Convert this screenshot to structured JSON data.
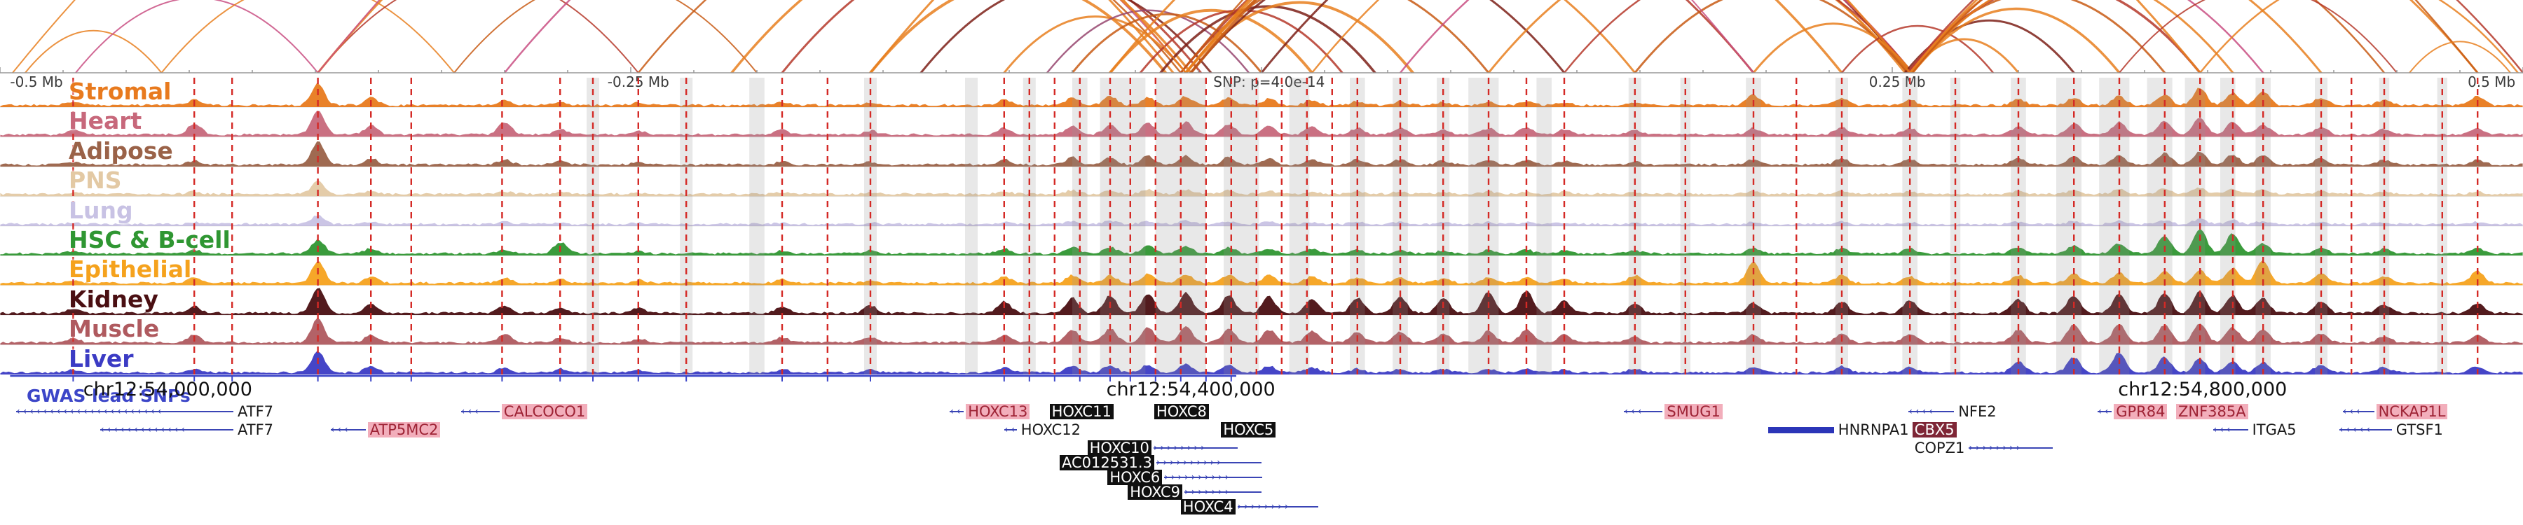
{
  "chart_data": {
    "type": "area",
    "ruler_labels": [
      {
        "text": "-0.5 Mb",
        "x": 0.004,
        "anchor": "start"
      },
      {
        "text": "-0.25 Mb",
        "x": 0.253,
        "anchor": "middle"
      },
      {
        "text": "SNP: p=4.0e-14",
        "x": 0.503,
        "anchor": "middle"
      },
      {
        "text": "0.25 Mb",
        "x": 0.752,
        "anchor": "middle"
      },
      {
        "text": "0.5 Mb",
        "x": 0.997,
        "anchor": "end"
      }
    ],
    "coordinates": [
      {
        "text": "chr12:54,000,000",
        "x": 0.033,
        "anchor": "start"
      },
      {
        "text": "chr12:54,400,000",
        "x": 0.472,
        "anchor": "middle"
      },
      {
        "text": "chr12:54,800,000",
        "x": 0.873,
        "anchor": "middle"
      }
    ],
    "gwas": {
      "label": "GWAS lead SNPs",
      "color": "#3C46C8",
      "line_start": 0.004,
      "line_end": 0.49
    },
    "tracks": [
      {
        "name": "Stromal",
        "color": "#E87A1E"
      },
      {
        "name": "Heart",
        "color": "#C7687B"
      },
      {
        "name": "Adipose",
        "color": "#9A6248"
      },
      {
        "name": "PNS",
        "color": "#E3C9A4"
      },
      {
        "name": "Lung",
        "color": "#C8C2E4"
      },
      {
        "name": "HSC & B-cell",
        "color": "#2F9632"
      },
      {
        "name": "Epithelial",
        "color": "#F5A21D"
      },
      {
        "name": "Kidney",
        "color": "#4A0F12"
      },
      {
        "name": "Muscle",
        "color": "#AF5A5F"
      },
      {
        "name": "Liver",
        "color": "#3B3BC4"
      }
    ],
    "peaks": [
      [
        0.029,
        0.15,
        0.2,
        0.1,
        0.05,
        0.05,
        0.1,
        0.1,
        0.15,
        0.15,
        0.1
      ],
      [
        0.077,
        0.2,
        0.45,
        0.15,
        0.1,
        0.08,
        0.15,
        0.2,
        0.25,
        0.3,
        0.15
      ],
      [
        0.126,
        0.85,
        0.95,
        0.9,
        0.5,
        0.35,
        0.55,
        0.85,
        1.0,
        0.95,
        0.85
      ],
      [
        0.147,
        0.3,
        0.35,
        0.25,
        0.12,
        0.1,
        0.2,
        0.25,
        0.35,
        0.3,
        0.25
      ],
      [
        0.2,
        0.2,
        0.5,
        0.2,
        0.1,
        0.08,
        0.15,
        0.2,
        0.3,
        0.35,
        0.2
      ],
      [
        0.222,
        0.15,
        0.2,
        0.15,
        0.08,
        0.06,
        0.45,
        0.15,
        0.2,
        0.2,
        0.15
      ],
      [
        0.253,
        0.1,
        0.15,
        0.1,
        0.05,
        0.05,
        0.1,
        0.12,
        0.2,
        0.15,
        0.1
      ],
      [
        0.31,
        0.12,
        0.18,
        0.12,
        0.06,
        0.05,
        0.12,
        0.15,
        0.25,
        0.2,
        0.12
      ],
      [
        0.345,
        0.1,
        0.15,
        0.1,
        0.05,
        0.05,
        0.15,
        0.1,
        0.3,
        0.2,
        0.1
      ],
      [
        0.398,
        0.2,
        0.25,
        0.2,
        0.1,
        0.08,
        0.2,
        0.25,
        0.45,
        0.3,
        0.2
      ],
      [
        0.425,
        0.3,
        0.35,
        0.3,
        0.15,
        0.1,
        0.25,
        0.3,
        0.6,
        0.5,
        0.25
      ],
      [
        0.44,
        0.35,
        0.4,
        0.3,
        0.15,
        0.12,
        0.25,
        0.3,
        0.7,
        0.55,
        0.3
      ],
      [
        0.455,
        0.3,
        0.45,
        0.35,
        0.18,
        0.12,
        0.3,
        0.35,
        0.75,
        0.6,
        0.3
      ],
      [
        0.47,
        0.35,
        0.5,
        0.35,
        0.18,
        0.15,
        0.3,
        0.35,
        0.8,
        0.65,
        0.35
      ],
      [
        0.487,
        0.3,
        0.4,
        0.3,
        0.15,
        0.12,
        0.25,
        0.3,
        0.7,
        0.55,
        0.3
      ],
      [
        0.503,
        0.25,
        0.35,
        0.25,
        0.12,
        0.1,
        0.2,
        0.3,
        0.65,
        0.5,
        0.25
      ],
      [
        0.52,
        0.2,
        0.3,
        0.2,
        0.1,
        0.08,
        0.2,
        0.25,
        0.55,
        0.45,
        0.2
      ],
      [
        0.538,
        0.15,
        0.25,
        0.2,
        0.1,
        0.08,
        0.15,
        0.2,
        0.6,
        0.4,
        0.15
      ],
      [
        0.555,
        0.15,
        0.25,
        0.2,
        0.1,
        0.08,
        0.15,
        0.2,
        0.65,
        0.4,
        0.15
      ],
      [
        0.572,
        0.12,
        0.2,
        0.15,
        0.08,
        0.06,
        0.12,
        0.18,
        0.6,
        0.35,
        0.12
      ],
      [
        0.59,
        0.15,
        0.25,
        0.2,
        0.1,
        0.08,
        0.15,
        0.2,
        0.85,
        0.45,
        0.15
      ],
      [
        0.605,
        0.15,
        0.3,
        0.2,
        0.1,
        0.08,
        0.15,
        0.2,
        0.9,
        0.5,
        0.15
      ],
      [
        0.62,
        0.1,
        0.2,
        0.15,
        0.08,
        0.06,
        0.12,
        0.15,
        0.5,
        0.3,
        0.1
      ],
      [
        0.648,
        0.12,
        0.18,
        0.12,
        0.06,
        0.05,
        0.12,
        0.3,
        0.35,
        0.25,
        0.15
      ],
      [
        0.695,
        0.4,
        0.25,
        0.2,
        0.1,
        0.08,
        0.2,
        0.8,
        0.4,
        0.3,
        0.2
      ],
      [
        0.73,
        0.25,
        0.3,
        0.25,
        0.12,
        0.1,
        0.2,
        0.3,
        0.45,
        0.35,
        0.25
      ],
      [
        0.757,
        0.2,
        0.25,
        0.2,
        0.1,
        0.08,
        0.2,
        0.25,
        0.5,
        0.35,
        0.2
      ],
      [
        0.8,
        0.25,
        0.3,
        0.25,
        0.12,
        0.1,
        0.25,
        0.3,
        0.55,
        0.5,
        0.45
      ],
      [
        0.822,
        0.3,
        0.45,
        0.35,
        0.15,
        0.12,
        0.3,
        0.35,
        0.7,
        0.7,
        0.6
      ],
      [
        0.84,
        0.35,
        0.5,
        0.4,
        0.18,
        0.15,
        0.4,
        0.4,
        0.75,
        0.75,
        0.8
      ],
      [
        0.858,
        0.4,
        0.55,
        0.45,
        0.2,
        0.15,
        0.7,
        0.45,
        0.8,
        0.7,
        0.6
      ],
      [
        0.872,
        0.7,
        0.65,
        0.5,
        0.25,
        0.2,
        1.0,
        0.5,
        0.85,
        0.75,
        0.55
      ],
      [
        0.885,
        0.5,
        0.5,
        0.4,
        0.2,
        0.15,
        0.8,
        0.6,
        0.7,
        0.6,
        0.45
      ],
      [
        0.897,
        0.55,
        0.4,
        0.35,
        0.18,
        0.12,
        0.4,
        0.9,
        0.6,
        0.5,
        0.4
      ],
      [
        0.92,
        0.3,
        0.3,
        0.25,
        0.12,
        0.1,
        0.25,
        0.4,
        0.45,
        0.35,
        0.3
      ],
      [
        0.945,
        0.2,
        0.2,
        0.18,
        0.1,
        0.08,
        0.18,
        0.25,
        0.35,
        0.25,
        0.2
      ],
      [
        0.982,
        0.35,
        0.25,
        0.2,
        0.1,
        0.08,
        0.2,
        0.5,
        0.4,
        0.3,
        0.25
      ]
    ],
    "snp_positions": [
      0.029,
      0.077,
      0.092,
      0.126,
      0.147,
      0.163,
      0.199,
      0.222,
      0.235,
      0.253,
      0.272,
      0.31,
      0.328,
      0.345,
      0.398,
      0.408,
      0.418,
      0.428,
      0.44,
      0.448,
      0.458,
      0.468,
      0.478,
      0.488,
      0.498,
      0.508,
      0.518,
      0.528,
      0.538,
      0.555,
      0.572,
      0.59,
      0.605,
      0.62,
      0.648,
      0.668,
      0.695,
      0.712,
      0.73,
      0.757,
      0.775,
      0.8,
      0.822,
      0.84,
      0.858,
      0.872,
      0.885,
      0.897,
      0.92,
      0.932,
      0.945,
      0.968,
      0.982
    ],
    "highlight_bands": [
      [
        0.235,
        0.005
      ],
      [
        0.272,
        0.005
      ],
      [
        0.3,
        0.006
      ],
      [
        0.345,
        0.005
      ],
      [
        0.385,
        0.005
      ],
      [
        0.408,
        0.005
      ],
      [
        0.428,
        0.006
      ],
      [
        0.445,
        0.018
      ],
      [
        0.468,
        0.02
      ],
      [
        0.492,
        0.014
      ],
      [
        0.515,
        0.008
      ],
      [
        0.538,
        0.006
      ],
      [
        0.555,
        0.006
      ],
      [
        0.572,
        0.005
      ],
      [
        0.588,
        0.012
      ],
      [
        0.612,
        0.006
      ],
      [
        0.648,
        0.005
      ],
      [
        0.668,
        0.004
      ],
      [
        0.695,
        0.006
      ],
      [
        0.73,
        0.005
      ],
      [
        0.757,
        0.006
      ],
      [
        0.775,
        0.004
      ],
      [
        0.8,
        0.006
      ],
      [
        0.82,
        0.01
      ],
      [
        0.838,
        0.012
      ],
      [
        0.856,
        0.01
      ],
      [
        0.87,
        0.008
      ],
      [
        0.883,
        0.006
      ],
      [
        0.897,
        0.006
      ],
      [
        0.92,
        0.005
      ],
      [
        0.945,
        0.004
      ],
      [
        0.968,
        0.004
      ]
    ],
    "arcs": {
      "palette": [
        "#E87F1F",
        "#C85A14",
        "#B5382A",
        "#7C2017",
        "#C94F82",
        "#97456E"
      ],
      "list": [
        [
          0.01,
          0.064,
          0,
          2
        ],
        [
          0.03,
          0.126,
          4,
          2
        ],
        [
          0.064,
          0.18,
          0,
          2
        ],
        [
          0.126,
          0.253,
          2,
          2
        ],
        [
          0.18,
          0.3,
          1,
          2
        ],
        [
          0.126,
          0.465,
          0,
          3
        ],
        [
          0.2,
          0.47,
          4,
          2.5
        ],
        [
          0.253,
          0.468,
          1,
          2.5
        ],
        [
          0.29,
          0.472,
          0,
          3.5
        ],
        [
          0.31,
          0.476,
          2,
          3
        ],
        [
          0.345,
          0.462,
          0,
          4
        ],
        [
          0.365,
          0.48,
          3,
          3
        ],
        [
          0.398,
          0.47,
          0,
          3
        ],
        [
          0.415,
          0.495,
          5,
          2.5
        ],
        [
          0.425,
          0.5,
          1,
          3
        ],
        [
          0.44,
          0.52,
          0,
          4
        ],
        [
          0.452,
          0.532,
          2,
          3
        ],
        [
          0.46,
          0.545,
          3,
          3.5
        ],
        [
          0.47,
          0.56,
          0,
          4
        ],
        [
          0.468,
          0.59,
          1,
          3
        ],
        [
          0.472,
          0.62,
          3,
          3
        ],
        [
          0.47,
          0.648,
          0,
          3
        ],
        [
          0.468,
          0.695,
          2,
          3
        ],
        [
          0.47,
          0.73,
          0,
          3.5
        ],
        [
          0.472,
          0.757,
          1,
          4
        ],
        [
          0.44,
          0.757,
          0,
          3
        ],
        [
          0.5,
          0.757,
          3,
          3
        ],
        [
          0.52,
          0.755,
          0,
          2.5
        ],
        [
          0.555,
          0.758,
          4,
          2.5
        ],
        [
          0.59,
          0.756,
          0,
          3
        ],
        [
          0.62,
          0.758,
          2,
          2.5
        ],
        [
          0.648,
          0.756,
          1,
          3
        ],
        [
          0.695,
          0.758,
          0,
          3
        ],
        [
          0.73,
          0.79,
          2,
          2.5
        ],
        [
          0.757,
          0.8,
          0,
          3
        ],
        [
          0.755,
          0.822,
          3,
          3
        ],
        [
          0.758,
          0.84,
          0,
          3.5
        ],
        [
          0.756,
          0.858,
          1,
          3
        ],
        [
          0.757,
          0.872,
          2,
          3.5
        ],
        [
          0.758,
          0.885,
          0,
          3
        ],
        [
          0.756,
          0.897,
          4,
          2.5
        ],
        [
          0.757,
          0.92,
          0,
          3
        ],
        [
          0.758,
          0.945,
          1,
          2.5
        ],
        [
          0.757,
          0.982,
          0,
          3
        ],
        [
          0.756,
          1.0,
          2,
          2.5
        ],
        [
          0.345,
          0.757,
          0,
          3
        ],
        [
          0.126,
          0.695,
          4,
          2
        ],
        [
          0.47,
          0.872,
          0,
          3
        ],
        [
          0.468,
          0.982,
          1,
          2.5
        ],
        [
          0.005,
          0.47,
          0,
          2
        ],
        [
          0.872,
          0.998,
          0,
          2.5
        ],
        [
          0.84,
          0.95,
          2,
          2
        ],
        [
          0.955,
          0.995,
          0,
          2
        ]
      ]
    },
    "genes": [
      {
        "label": "ATF7",
        "x": 0.0925,
        "row": 0,
        "style": "plain",
        "pre": 310
      },
      {
        "label": "CALCOCO1",
        "x": 0.198,
        "row": 0,
        "style": "pink",
        "pre": 55
      },
      {
        "label": "HOXC13",
        "x": 0.382,
        "row": 0,
        "style": "pink",
        "pre": 20
      },
      {
        "label": "HOXC11",
        "x": 0.416,
        "row": 0,
        "style": "black"
      },
      {
        "label": "HOXC8",
        "x": 0.4575,
        "row": 0,
        "style": "black"
      },
      {
        "label": "SMUG1",
        "x": 0.659,
        "row": 0,
        "style": "pink",
        "pre": 55
      },
      {
        "label": "NFE2",
        "x": 0.7745,
        "row": 0,
        "style": "plain",
        "pre": 65
      },
      {
        "label": "GPR84",
        "x": 0.837,
        "row": 0,
        "style": "pink",
        "pre": 20
      },
      {
        "label": "ZNF385A",
        "x": 0.8625,
        "row": 0,
        "style": "pink"
      },
      {
        "label": "NCKAP1L",
        "x": 0.941,
        "row": 0,
        "style": "pink",
        "pre": 45
      },
      {
        "label": "ATF7",
        "x": 0.0925,
        "row": 1,
        "style": "plain",
        "pre": 190
      },
      {
        "label": "ATP5MC2",
        "x": 0.1449,
        "row": 1,
        "style": "pink",
        "pre": 50
      },
      {
        "label": "HOXC12",
        "x": 0.403,
        "row": 1,
        "style": "plain",
        "pre": 18
      },
      {
        "label": "HOXC5",
        "x": 0.484,
        "row": 1,
        "style": "black"
      },
      {
        "label": "HNRNPA1",
        "x": 0.728,
        "row": 1,
        "style": "plain",
        "bar": 94
      },
      {
        "label": "CBX5",
        "x": 0.758,
        "row": 1,
        "style": "darkred"
      },
      {
        "label": "ITGA5",
        "x": 0.891,
        "row": 1,
        "style": "plain",
        "pre": 50
      },
      {
        "label": "GTSF1",
        "x": 0.948,
        "row": 1,
        "style": "plain",
        "pre": 75
      },
      {
        "label": "HOXC10",
        "x": 0.431,
        "row": 2,
        "style": "black",
        "post": 120
      },
      {
        "label": "COPZ1",
        "x": 0.758,
        "row": 2,
        "style": "plain",
        "post": 120
      },
      {
        "label": "AC012531.3",
        "x": 0.42,
        "row": 3,
        "style": "black",
        "post": 150
      },
      {
        "label": "HOXC6",
        "x": 0.439,
        "row": 4,
        "style": "black",
        "post": 140
      },
      {
        "label": "HOXC9",
        "x": 0.447,
        "row": 5,
        "style": "black",
        "post": 110
      },
      {
        "label": "HOXC4",
        "x": 0.468,
        "row": 6,
        "style": "black",
        "post": 115
      }
    ],
    "style": {
      "snp_line_color": "#D42A26",
      "band_color": "rgba(150,150,150,0.22)",
      "ruler_text_color": "#3a3a3a",
      "gene_line_color": "#3A45B5"
    }
  }
}
